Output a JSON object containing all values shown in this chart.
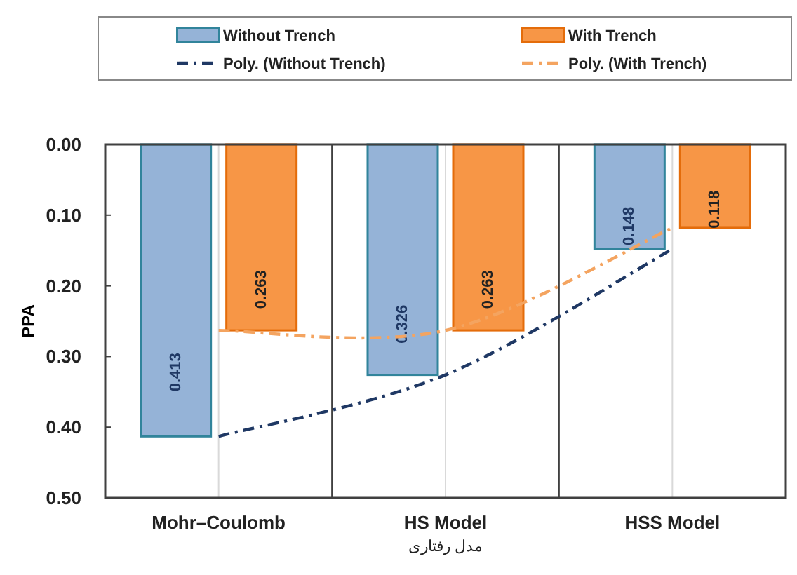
{
  "chart_data": {
    "type": "bar",
    "ylabel": "PPA",
    "xlabel": "مدل رفتاری",
    "categories": [
      "Mohr–Coulomb",
      "HS Model",
      "HSS Model"
    ],
    "series": [
      {
        "name": "Without Trench",
        "color": "#95b3d7",
        "values": [
          0.413,
          0.326,
          0.148
        ],
        "value_labels": [
          "0.413",
          "0.326",
          "0.148"
        ]
      },
      {
        "name": "With Trench",
        "color": "#f79646",
        "values": [
          0.263,
          0.263,
          0.118
        ],
        "value_labels": [
          "0.263",
          "0.263",
          "0.118"
        ]
      },
      {
        "name": "Poly. (Without Trench)",
        "type": "line",
        "color": "#1f3864",
        "line_style": "dashdot",
        "values": [
          0.413,
          0.326,
          0.148
        ]
      },
      {
        "name": "Poly. (With Trench)",
        "type": "line",
        "color": "#f4a460",
        "line_style": "dashdot",
        "values": [
          0.263,
          0.263,
          0.118
        ]
      }
    ],
    "ylim": [
      0.5,
      0
    ],
    "yticks": [
      {
        "value": 0,
        "label": "0.00"
      },
      {
        "value": 0.1,
        "label": "0.10"
      },
      {
        "value": 0.2,
        "label": "0.20"
      },
      {
        "value": 0.3,
        "label": "0.30"
      },
      {
        "value": 0.4,
        "label": "0.40"
      },
      {
        "value": 0.5,
        "label": "0.50"
      }
    ],
    "grid": "x",
    "legend": "top"
  }
}
